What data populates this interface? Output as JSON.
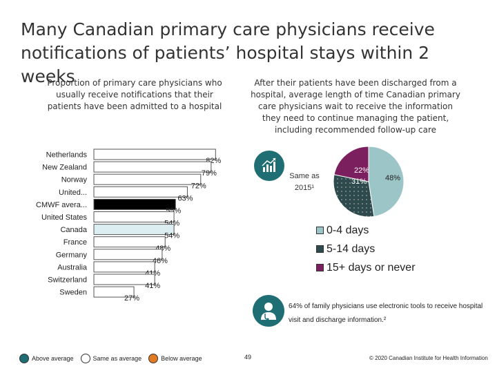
{
  "title": "Many Canadian primary care physicians receive notifications of patients’ hospital stays within 2 weeks",
  "left_heading": "Proportion of primary care physicians who usually receive notifications that their patients have been admitted to a hospital",
  "right_heading": "After their patients have been discharged from a hospital, average length of time Canadian primary care physicians wait to receive the information they need to continue managing the patient, including recommended follow-up care",
  "compare_text": "Same as 2015¹",
  "footnote": "64% of family physicians use electronic tools to receive hospital visit and discharge information.²",
  "page_number": "49",
  "copyright": "© 2020 Canadian Institute for Health Information",
  "bottom_legend": [
    {
      "label": "Above average",
      "color": "#1f6e74"
    },
    {
      "label": "Same as average",
      "color": "#ffffff"
    },
    {
      "label": "Below average",
      "color": "#e07b24"
    }
  ],
  "chart_data": [
    {
      "type": "bar",
      "orientation": "horizontal",
      "categories": [
        "Netherlands",
        "New Zealand",
        "Norway",
        "United...",
        "CMWF avera...",
        "United States",
        "Canada",
        "France",
        "Germany",
        "Australia",
        "Switzerland",
        "Sweden"
      ],
      "values": [
        82,
        79,
        72,
        63,
        55,
        54,
        54,
        48,
        46,
        41,
        41,
        27
      ],
      "value_labels": [
        "82%",
        "79%",
        "72%",
        "63%",
        "55%",
        "54%",
        "54%",
        "48%",
        "46%",
        "41%",
        "41%",
        "27%"
      ],
      "bar_colors": [
        "#ffffff",
        "#ffffff",
        "#ffffff",
        "#ffffff",
        "#000000",
        "#ffffff",
        "#dceef2",
        "#ffffff",
        "#ffffff",
        "#ffffff",
        "#ffffff",
        "#ffffff"
      ],
      "xlim": [
        0,
        100
      ]
    },
    {
      "type": "pie",
      "labels": [
        "0-4 days",
        "5-14 days",
        "15+ days or never"
      ],
      "values": [
        48,
        31,
        22
      ],
      "value_labels": [
        "48%",
        "31%",
        "22%"
      ],
      "colors": [
        "#9cc5c7",
        "#2e4a4c",
        "#7b1f5e"
      ]
    }
  ]
}
